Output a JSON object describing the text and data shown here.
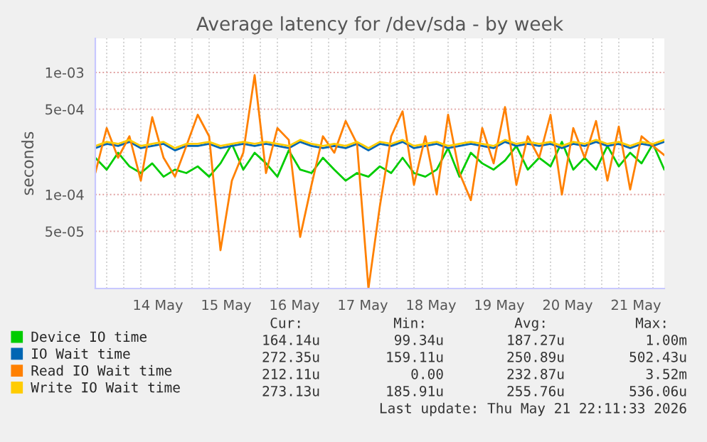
{
  "chart_data": {
    "type": "line",
    "title": "Average latency for /dev/sda - by week",
    "ylabel": "seconds",
    "x": [
      "2026-05-13T14:00",
      "2026-05-13T18:00",
      "2026-05-13T22:00",
      "2026-05-14T02:00",
      "2026-05-14T06:00",
      "2026-05-14T10:00",
      "2026-05-14T14:00",
      "2026-05-14T18:00",
      "2026-05-14T22:00",
      "2026-05-15T02:00",
      "2026-05-15T06:00",
      "2026-05-15T10:00",
      "2026-05-15T14:00",
      "2026-05-15T18:00",
      "2026-05-15T22:00",
      "2026-05-16T02:00",
      "2026-05-16T06:00",
      "2026-05-16T10:00",
      "2026-05-16T14:00",
      "2026-05-16T18:00",
      "2026-05-16T22:00",
      "2026-05-17T02:00",
      "2026-05-17T06:00",
      "2026-05-17T10:00",
      "2026-05-17T14:00",
      "2026-05-17T18:00",
      "2026-05-17T22:00",
      "2026-05-18T02:00",
      "2026-05-18T06:00",
      "2026-05-18T10:00",
      "2026-05-18T14:00",
      "2026-05-18T18:00",
      "2026-05-18T22:00",
      "2026-05-19T02:00",
      "2026-05-19T06:00",
      "2026-05-19T10:00",
      "2026-05-19T14:00",
      "2026-05-19T18:00",
      "2026-05-19T22:00",
      "2026-05-20T02:00",
      "2026-05-20T06:00",
      "2026-05-20T10:00",
      "2026-05-20T14:00",
      "2026-05-20T18:00",
      "2026-05-20T22:00",
      "2026-05-21T02:00",
      "2026-05-21T06:00",
      "2026-05-21T10:00",
      "2026-05-21T14:00",
      "2026-05-21T18:00",
      "2026-05-21T22:00"
    ],
    "series": [
      {
        "name": "Device IO time",
        "color": "#00cc00",
        "values": [
          0.0002,
          0.00016,
          0.00022,
          0.00017,
          0.00015,
          0.00018,
          0.00014,
          0.00016,
          0.00015,
          0.00017,
          0.00014,
          0.00018,
          0.00026,
          0.00016,
          0.00022,
          0.00018,
          0.00014,
          0.00023,
          0.00016,
          0.00015,
          0.0002,
          0.00016,
          0.00013,
          0.00015,
          0.00014,
          0.00017,
          0.00015,
          0.0002,
          0.00015,
          0.00014,
          0.00016,
          0.00024,
          0.00014,
          0.00022,
          0.00018,
          0.00016,
          0.00019,
          0.00025,
          0.00016,
          0.0002,
          0.00017,
          0.00027,
          0.00016,
          0.0002,
          0.00016,
          0.00025,
          0.00017,
          0.00022,
          0.00018,
          0.00026,
          0.00016
        ]
      },
      {
        "name": "IO Wait time",
        "color": "#0066b3",
        "values": [
          0.00024,
          0.00026,
          0.00025,
          0.00027,
          0.00024,
          0.00025,
          0.00026,
          0.00023,
          0.00025,
          0.00025,
          0.00026,
          0.00024,
          0.00025,
          0.00026,
          0.00025,
          0.00026,
          0.00025,
          0.00024,
          0.00027,
          0.00025,
          0.00024,
          0.00025,
          0.00024,
          0.00026,
          0.00023,
          0.00026,
          0.00025,
          0.00027,
          0.00024,
          0.00025,
          0.00026,
          0.00024,
          0.00025,
          0.00026,
          0.00025,
          0.00024,
          0.00027,
          0.00025,
          0.00026,
          0.00025,
          0.00026,
          0.00024,
          0.00026,
          0.00025,
          0.00027,
          0.00025,
          0.00026,
          0.00024,
          0.00026,
          0.00025,
          0.00027
        ]
      },
      {
        "name": "Read IO Wait time",
        "color": "#ff8000",
        "values": [
          0.00015,
          0.00035,
          0.0002,
          0.0003,
          0.00013,
          0.00043,
          0.0002,
          0.00014,
          0.00025,
          0.00045,
          0.0003,
          3.5e-05,
          0.00013,
          0.00022,
          0.00095,
          0.00015,
          0.00035,
          0.00028,
          4.5e-05,
          0.00012,
          0.0003,
          0.00022,
          0.0004,
          0.00026,
          1.7e-05,
          8e-05,
          0.0003,
          0.00048,
          0.00012,
          0.0003,
          0.0001,
          0.00045,
          0.00015,
          9e-05,
          0.00035,
          0.00018,
          0.00052,
          0.00012,
          0.0003,
          0.0002,
          0.00045,
          0.0001,
          0.00035,
          0.0002,
          0.0004,
          0.00013,
          0.00036,
          0.00011,
          0.0003,
          0.00025,
          0.00021
        ]
      },
      {
        "name": "Write IO Wait time",
        "color": "#ffcc00",
        "values": [
          0.00025,
          0.00027,
          0.00026,
          0.00028,
          0.00025,
          0.00026,
          0.00027,
          0.00024,
          0.00026,
          0.00026,
          0.00027,
          0.00025,
          0.00026,
          0.00027,
          0.00026,
          0.00027,
          0.00026,
          0.00025,
          0.00028,
          0.00026,
          0.00025,
          0.00026,
          0.00025,
          0.00027,
          0.00024,
          0.00027,
          0.00026,
          0.00028,
          0.00025,
          0.00026,
          0.00027,
          0.00025,
          0.00026,
          0.00027,
          0.00026,
          0.00025,
          0.00028,
          0.00026,
          0.00027,
          0.00026,
          0.00027,
          0.00025,
          0.00027,
          0.00026,
          0.00028,
          0.00026,
          0.00027,
          0.00025,
          0.00027,
          0.00026,
          0.00028
        ]
      }
    ],
    "log": "y",
    "xlim": [
      "2026-05-13T14:00",
      "2026-05-21T22:00"
    ],
    "xticks": [
      {
        "value": "2026-05-14T12:00",
        "label": "14 May"
      },
      {
        "value": "2026-05-15T12:00",
        "label": "15 May"
      },
      {
        "value": "2026-05-16T12:00",
        "label": "16 May"
      },
      {
        "value": "2026-05-17T12:00",
        "label": "17 May"
      },
      {
        "value": "2026-05-18T12:00",
        "label": "18 May"
      },
      {
        "value": "2026-05-19T12:00",
        "label": "19 May"
      },
      {
        "value": "2026-05-20T12:00",
        "label": "20 May"
      },
      {
        "value": "2026-05-21T12:00",
        "label": "21 May"
      }
    ],
    "ylim": [
      1.7e-05,
      0.0019
    ],
    "yticks": [
      {
        "value": 5e-05,
        "label": "5e-05"
      },
      {
        "value": 0.0001,
        "label": "1e-04"
      },
      {
        "value": 0.0005,
        "label": "5e-04"
      },
      {
        "value": 0.001,
        "label": "1e-03"
      }
    ],
    "grid": true,
    "legend": "bottom",
    "marker": "none",
    "line_style": "solid",
    "annotations": [
      "Cur:",
      "Min:",
      "Avg:",
      "Max:",
      "164.14u",
      "99.34u",
      "187.27u",
      "1.00m",
      "272.35u",
      "159.11u",
      "250.89u",
      "502.43u",
      "212.11u",
      "0.00",
      "232.87u",
      "3.52m",
      "273.13u",
      "185.91u",
      "255.76u",
      "536.06u",
      "Last update: Thu May 21 22:11:33 2026"
    ]
  }
}
